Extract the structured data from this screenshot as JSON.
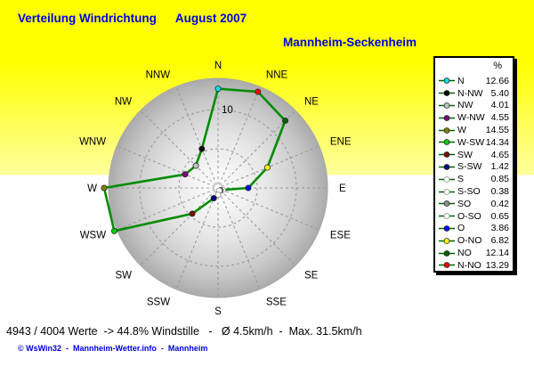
{
  "header": {
    "title_left": "Verteilung Windrichtung",
    "title_right": "August 2007",
    "subtitle": "Mannheim-Seckenheim"
  },
  "chart_data": {
    "type": "radar",
    "title": "Verteilung Windrichtung August 2007",
    "station": "Mannheim-Seckenheim",
    "unit": "%",
    "axis": {
      "ring_values": [
        5,
        10
      ],
      "ring_label": "10",
      "grid_style": "dashed",
      "spokes": 16
    },
    "directions": [
      {
        "chart_label": "N",
        "legend_label": "N",
        "value": 12.66,
        "display": "12.66",
        "color": "#00e0e0",
        "open": false
      },
      {
        "chart_label": "NNE",
        "legend_label": "N-NO",
        "value": 13.29,
        "display": "13.29",
        "color": "#ff0000",
        "open": false
      },
      {
        "chart_label": "NE",
        "legend_label": "NO",
        "value": 12.14,
        "display": "12.14",
        "color": "#006000",
        "open": false
      },
      {
        "chart_label": "ENE",
        "legend_label": "O-NO",
        "value": 6.82,
        "display": "6.82",
        "color": "#ffff00",
        "open": false
      },
      {
        "chart_label": "E",
        "legend_label": "O",
        "value": 3.86,
        "display": "3.86",
        "color": "#0000ff",
        "open": false
      },
      {
        "chart_label": "ESE",
        "legend_label": "O-SO",
        "value": 0.65,
        "display": "0.65",
        "color": "#ffffff",
        "open": true
      },
      {
        "chart_label": "SE",
        "legend_label": "SO",
        "value": 0.42,
        "display": "0.42",
        "color": "#8e8e8e",
        "open": false
      },
      {
        "chart_label": "SSE",
        "legend_label": "S-SO",
        "value": 0.38,
        "display": "0.38",
        "color": "#ffffff",
        "open": true
      },
      {
        "chart_label": "S",
        "legend_label": "S",
        "value": 0.85,
        "display": "0.85",
        "color": "#ffffff",
        "open": true
      },
      {
        "chart_label": "SSW",
        "legend_label": "S-SW",
        "value": 1.42,
        "display": "1.42",
        "color": "#000080",
        "open": false
      },
      {
        "chart_label": "SW",
        "legend_label": "SW",
        "value": 4.65,
        "display": "4.65",
        "color": "#800000",
        "open": false
      },
      {
        "chart_label": "WSW",
        "legend_label": "W-SW",
        "value": 14.34,
        "display": "14.34",
        "color": "#00cc00",
        "open": false
      },
      {
        "chart_label": "W",
        "legend_label": "W",
        "value": 14.55,
        "display": "14.55",
        "color": "#808000",
        "open": false
      },
      {
        "chart_label": "WNW",
        "legend_label": "W-NW",
        "value": 4.55,
        "display": "4.55",
        "color": "#800080",
        "open": false
      },
      {
        "chart_label": "NW",
        "legend_label": "NW",
        "value": 4.01,
        "display": "4.01",
        "color": "#c0c0c0",
        "open": false
      },
      {
        "chart_label": "NNW",
        "legend_label": "N-NW",
        "value": 5.4,
        "display": "5.40",
        "color": "#000000",
        "open": false
      }
    ],
    "legend_order": [
      0,
      15,
      14,
      13,
      12,
      11,
      10,
      9,
      8,
      7,
      6,
      5,
      4,
      3,
      2,
      1
    ]
  },
  "legend": {
    "pct_header": "%",
    "line_color": "#006600"
  },
  "footer": {
    "stats": "4943 / 4004 Werte  -> 44.8% Windstille   -   Ø 4.5km/h  -  Max. 31.5km/h",
    "copyright": "© WsWin32  -  Mannheim-Wetter.info  -  Mannheim"
  },
  "colors": {
    "title": "#0000e0",
    "bg_top": "#ffff00",
    "polygon_line": "#008c00",
    "grid_line": "#969696",
    "sphere_edge": "#a6a6a6"
  }
}
